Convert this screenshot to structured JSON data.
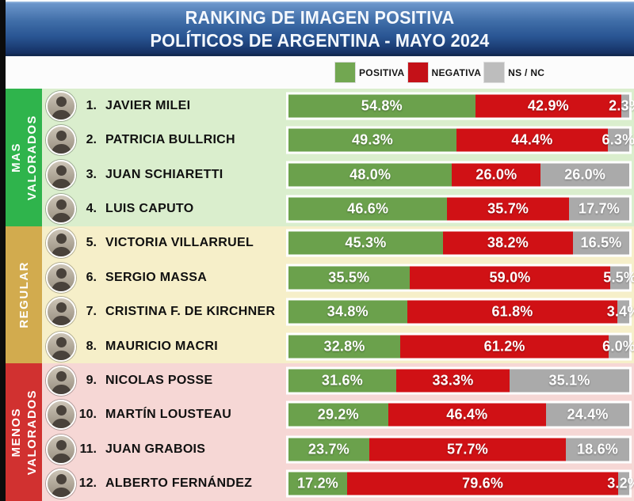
{
  "header": {
    "title_line1": "RANKING DE IMAGEN POSITIVA",
    "title_line2": "POLÍTICOS DE ARGENTINA - MAYO 2024"
  },
  "sections": [
    {
      "label": "MAS VALORADOS",
      "words": [
        "MAS",
        "VALORADOS"
      ],
      "band_color": "#2fb44c",
      "row_bg": "#daeecd",
      "row_start": 0,
      "row_count": 4
    },
    {
      "label": "REGULAR",
      "words": [
        "REGULAR"
      ],
      "band_color": "#d2ab4e",
      "row_bg": "#f6efc9",
      "row_start": 4,
      "row_count": 4
    },
    {
      "label": "MENOS VALORADOS",
      "words": [
        "MENOS",
        "VALORADOS"
      ],
      "band_color": "#d13130",
      "row_bg": "#f6d7d5",
      "row_start": 8,
      "row_count": 4
    }
  ],
  "chart_data": {
    "type": "bar",
    "orientation": "horizontal",
    "stacked": true,
    "unit": "%",
    "xlim": [
      0,
      100
    ],
    "title": "RANKING DE IMAGEN POSITIVA",
    "subtitle": "POLÍTICOS DE ARGENTINA - MAYO 2024",
    "legend_position": "top",
    "categories": [
      "JAVIER MILEI",
      "PATRICIA BULLRICH",
      "JUAN SCHIARETTI",
      "LUIS CAPUTO",
      "VICTORIA VILLARRUEL",
      "SERGIO MASSA",
      "CRISTINA F. DE KIRCHNER",
      "MAURICIO MACRI",
      "NICOLAS POSSE",
      "MARTÍN LOUSTEAU",
      "JUAN GRABOIS",
      "ALBERTO FERNÁNDEZ"
    ],
    "ranks": [
      "1.",
      "2.",
      "3.",
      "4.",
      "5.",
      "6.",
      "7.",
      "8.",
      "9.",
      "10.",
      "11.",
      "12."
    ],
    "series": [
      {
        "name": "POSITIVA",
        "bar_color": "#6ba14c",
        "legend_color": "#72a751",
        "values": [
          54.8,
          49.3,
          48.0,
          46.6,
          45.3,
          35.5,
          34.8,
          32.8,
          31.6,
          29.2,
          23.7,
          17.2
        ]
      },
      {
        "name": "NEGATIVA",
        "bar_color": "#d01115",
        "legend_color": "#c41118",
        "values": [
          42.9,
          44.4,
          26.0,
          35.7,
          38.2,
          59.0,
          61.8,
          61.2,
          33.3,
          46.4,
          57.7,
          79.6
        ]
      },
      {
        "name": "NS / NC",
        "bar_color": "#aaaaaa",
        "legend_color": "#bdbdbd",
        "values": [
          2.3,
          6.3,
          26.0,
          17.7,
          16.5,
          5.5,
          3.4,
          6.0,
          35.1,
          24.4,
          18.6,
          3.2
        ]
      }
    ]
  }
}
